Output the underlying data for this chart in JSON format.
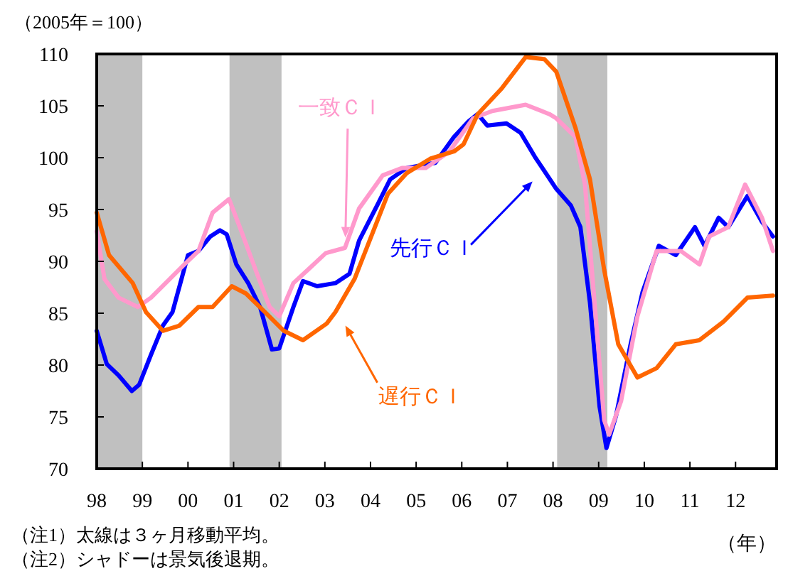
{
  "chart_data": {
    "type": "line",
    "ylabel": "（2005年＝100）",
    "xlabel": "（年）",
    "xlim": [
      1998,
      2012.9
    ],
    "ylim": [
      70,
      110
    ],
    "xticks": [
      {
        "value": 1998,
        "label": "98"
      },
      {
        "value": 1999,
        "label": "99"
      },
      {
        "value": 2000,
        "label": "00"
      },
      {
        "value": 2001,
        "label": "01"
      },
      {
        "value": 2002,
        "label": "02"
      },
      {
        "value": 2003,
        "label": "03"
      },
      {
        "value": 2004,
        "label": "04"
      },
      {
        "value": 2005,
        "label": "05"
      },
      {
        "value": 2006,
        "label": "06"
      },
      {
        "value": 2007,
        "label": "07"
      },
      {
        "value": 2008,
        "label": "08"
      },
      {
        "value": 2009,
        "label": "09"
      },
      {
        "value": 2010,
        "label": "10"
      },
      {
        "value": 2011,
        "label": "11"
      },
      {
        "value": 2012,
        "label": "12"
      }
    ],
    "yticks": [
      70,
      75,
      80,
      85,
      90,
      95,
      100,
      105,
      110
    ],
    "bands": [
      {
        "axis": "x",
        "from": 1998.0,
        "to": 1999.0,
        "color": "#c0c0c0"
      },
      {
        "axis": "x",
        "from": 2000.91,
        "to": 2002.05,
        "color": "#c0c0c0"
      },
      {
        "axis": "x",
        "from": 2008.09,
        "to": 2009.19,
        "color": "#c0c0c0"
      }
    ],
    "series": [
      {
        "name": "先行ＣＩ",
        "color": "#0000ff",
        "x": [
          1998.0,
          1998.22,
          1998.48,
          1998.77,
          1998.93,
          1999.19,
          1999.45,
          1999.66,
          2000.0,
          2000.23,
          2000.49,
          2000.7,
          2000.85,
          2001.06,
          2001.32,
          2001.58,
          2001.84,
          2002.0,
          2002.31,
          2002.52,
          2002.83,
          2003.23,
          2003.54,
          2003.75,
          2004.17,
          2004.43,
          2004.79,
          2005.42,
          2005.83,
          2006.15,
          2006.35,
          2006.56,
          2006.98,
          2007.29,
          2007.6,
          2008.07,
          2008.39,
          2008.6,
          2008.81,
          2009.02,
          2009.17,
          2009.38,
          2009.7,
          2009.96,
          2010.32,
          2010.69,
          2011.11,
          2011.32,
          2011.63,
          2011.84,
          2012.26,
          2012.58,
          2012.82
        ],
        "values": [
          83.3,
          80.1,
          79.0,
          77.5,
          78.1,
          81.0,
          83.8,
          85.1,
          90.6,
          91.0,
          92.4,
          93.0,
          92.6,
          89.7,
          87.9,
          85.6,
          81.5,
          81.6,
          85.6,
          88.1,
          87.6,
          87.9,
          88.8,
          92.0,
          95.6,
          97.9,
          99.0,
          99.5,
          102.0,
          103.5,
          104.2,
          103.1,
          103.3,
          102.4,
          100.1,
          97.0,
          95.4,
          93.3,
          86.0,
          76.0,
          72.0,
          75.1,
          82.0,
          87.0,
          91.5,
          90.6,
          93.3,
          91.5,
          94.2,
          93.3,
          96.3,
          93.8,
          92.4
        ]
      },
      {
        "name": "一致ＣＩ",
        "color": "#ff99cc",
        "x": [
          1998.0,
          1998.17,
          1998.48,
          1998.9,
          1999.19,
          1999.6,
          1999.92,
          2000.23,
          2000.54,
          2000.9,
          2001.17,
          2001.48,
          2001.79,
          2002.0,
          2002.31,
          2002.63,
          2003.02,
          2003.44,
          2003.75,
          2004.27,
          2004.69,
          2005.21,
          2005.73,
          2006.25,
          2006.67,
          2007.4,
          2007.92,
          2008.07,
          2008.49,
          2008.7,
          2008.91,
          2009.12,
          2009.23,
          2009.49,
          2009.85,
          2010.27,
          2010.8,
          2011.21,
          2011.42,
          2011.84,
          2012.21,
          2012.58,
          2012.82
        ],
        "values": [
          92.9,
          88.3,
          86.5,
          85.6,
          86.5,
          88.3,
          89.7,
          91.0,
          94.7,
          96.0,
          92.9,
          89.2,
          85.6,
          84.7,
          87.9,
          89.2,
          90.8,
          91.3,
          95.1,
          98.3,
          99.0,
          99.0,
          100.6,
          103.8,
          104.5,
          105.1,
          104.2,
          103.8,
          102.0,
          97.4,
          86.0,
          74.7,
          73.3,
          76.5,
          84.7,
          91.0,
          91.0,
          89.7,
          92.4,
          93.3,
          97.4,
          94.2,
          91.0
        ]
      },
      {
        "name": "遅行ＣＩ",
        "color": "#ff6600",
        "x": [
          1998.0,
          1998.27,
          1998.79,
          1999.08,
          1999.45,
          1999.81,
          2000.23,
          2000.54,
          2000.96,
          2001.27,
          2001.69,
          2002.1,
          2002.52,
          2003.04,
          2003.23,
          2003.65,
          2004.06,
          2004.38,
          2004.79,
          2005.31,
          2005.83,
          2006.04,
          2006.35,
          2006.88,
          2007.4,
          2007.81,
          2008.07,
          2008.49,
          2008.81,
          2009.12,
          2009.43,
          2009.85,
          2010.27,
          2010.69,
          2011.21,
          2011.74,
          2012.26,
          2012.82
        ],
        "values": [
          94.7,
          90.6,
          87.9,
          85.1,
          83.3,
          83.8,
          85.6,
          85.6,
          87.6,
          86.9,
          85.1,
          83.3,
          82.4,
          84.0,
          85.1,
          88.3,
          92.9,
          96.5,
          98.5,
          99.9,
          100.6,
          101.3,
          104.2,
          106.7,
          109.7,
          109.5,
          108.3,
          102.9,
          97.9,
          89.2,
          82.0,
          78.8,
          79.7,
          82.0,
          82.4,
          84.2,
          86.5,
          86.7
        ]
      }
    ],
    "annotations": [
      "（注1）太線は３ヶ月移動平均。",
      "（注2）シャドーは景気後退期。"
    ]
  }
}
